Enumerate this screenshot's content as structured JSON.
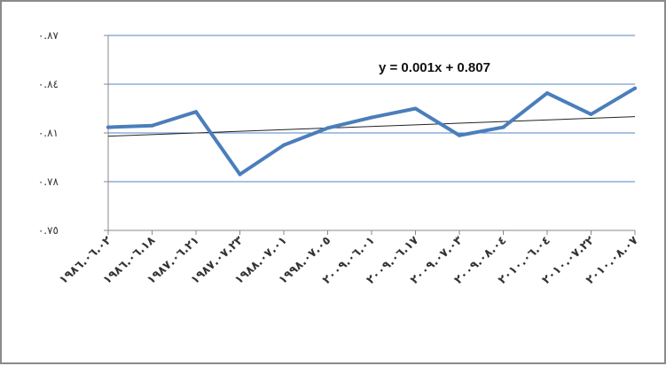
{
  "chart_data": {
    "type": "line",
    "title": "",
    "xlabel": "",
    "ylabel": "",
    "categories": [
      "١٩٨٦.٠٦.٠٢",
      "١٩٨٦.٠٦.١٨",
      "١٩٨٧.٠٦.٢١",
      "١٩٨٧.٠٧.٢٣",
      "١٩٨٨.٠٧.٠١",
      "١٩٩٨.٠٧.٠٥",
      "٢٠٠٩.٠٦.٠١",
      "٢٠٠٩.٠٦.١٧",
      "٢٠٠٩.٠٧.٠٣",
      "٢٠٠٩.٠٨.٠٤",
      "٢٠١٠.٠٦.٠٤",
      "٢٠١٠.٠٧.٢٢",
      "٢٠١٠.٠٨.٠٧"
    ],
    "series": [
      {
        "values": [
          0.8135,
          0.8145,
          0.823,
          0.7845,
          0.8025,
          0.813,
          0.8195,
          0.825,
          0.8085,
          0.8135,
          0.8345,
          0.8215,
          0.8375
        ]
      }
    ],
    "trendline": {
      "slope": 0.001,
      "intercept": 0.807,
      "equation": "y = 0.001x + 0.807"
    },
    "y_ticks": [
      {
        "value": 0.75,
        "label": "٠.٧٥"
      },
      {
        "value": 0.78,
        "label": "٠.٧٨"
      },
      {
        "value": 0.81,
        "label": "٠.٨١"
      },
      {
        "value": 0.84,
        "label": "٠.٨٤"
      },
      {
        "value": 0.87,
        "label": "٠.٨٧"
      }
    ],
    "ylim": [
      0.75,
      0.87
    ],
    "grid": true,
    "legend": "none",
    "colors": {
      "series": "#4a7ebb",
      "trendline": "#222222",
      "grid": "#4f86c6",
      "axis": "#888888"
    }
  }
}
